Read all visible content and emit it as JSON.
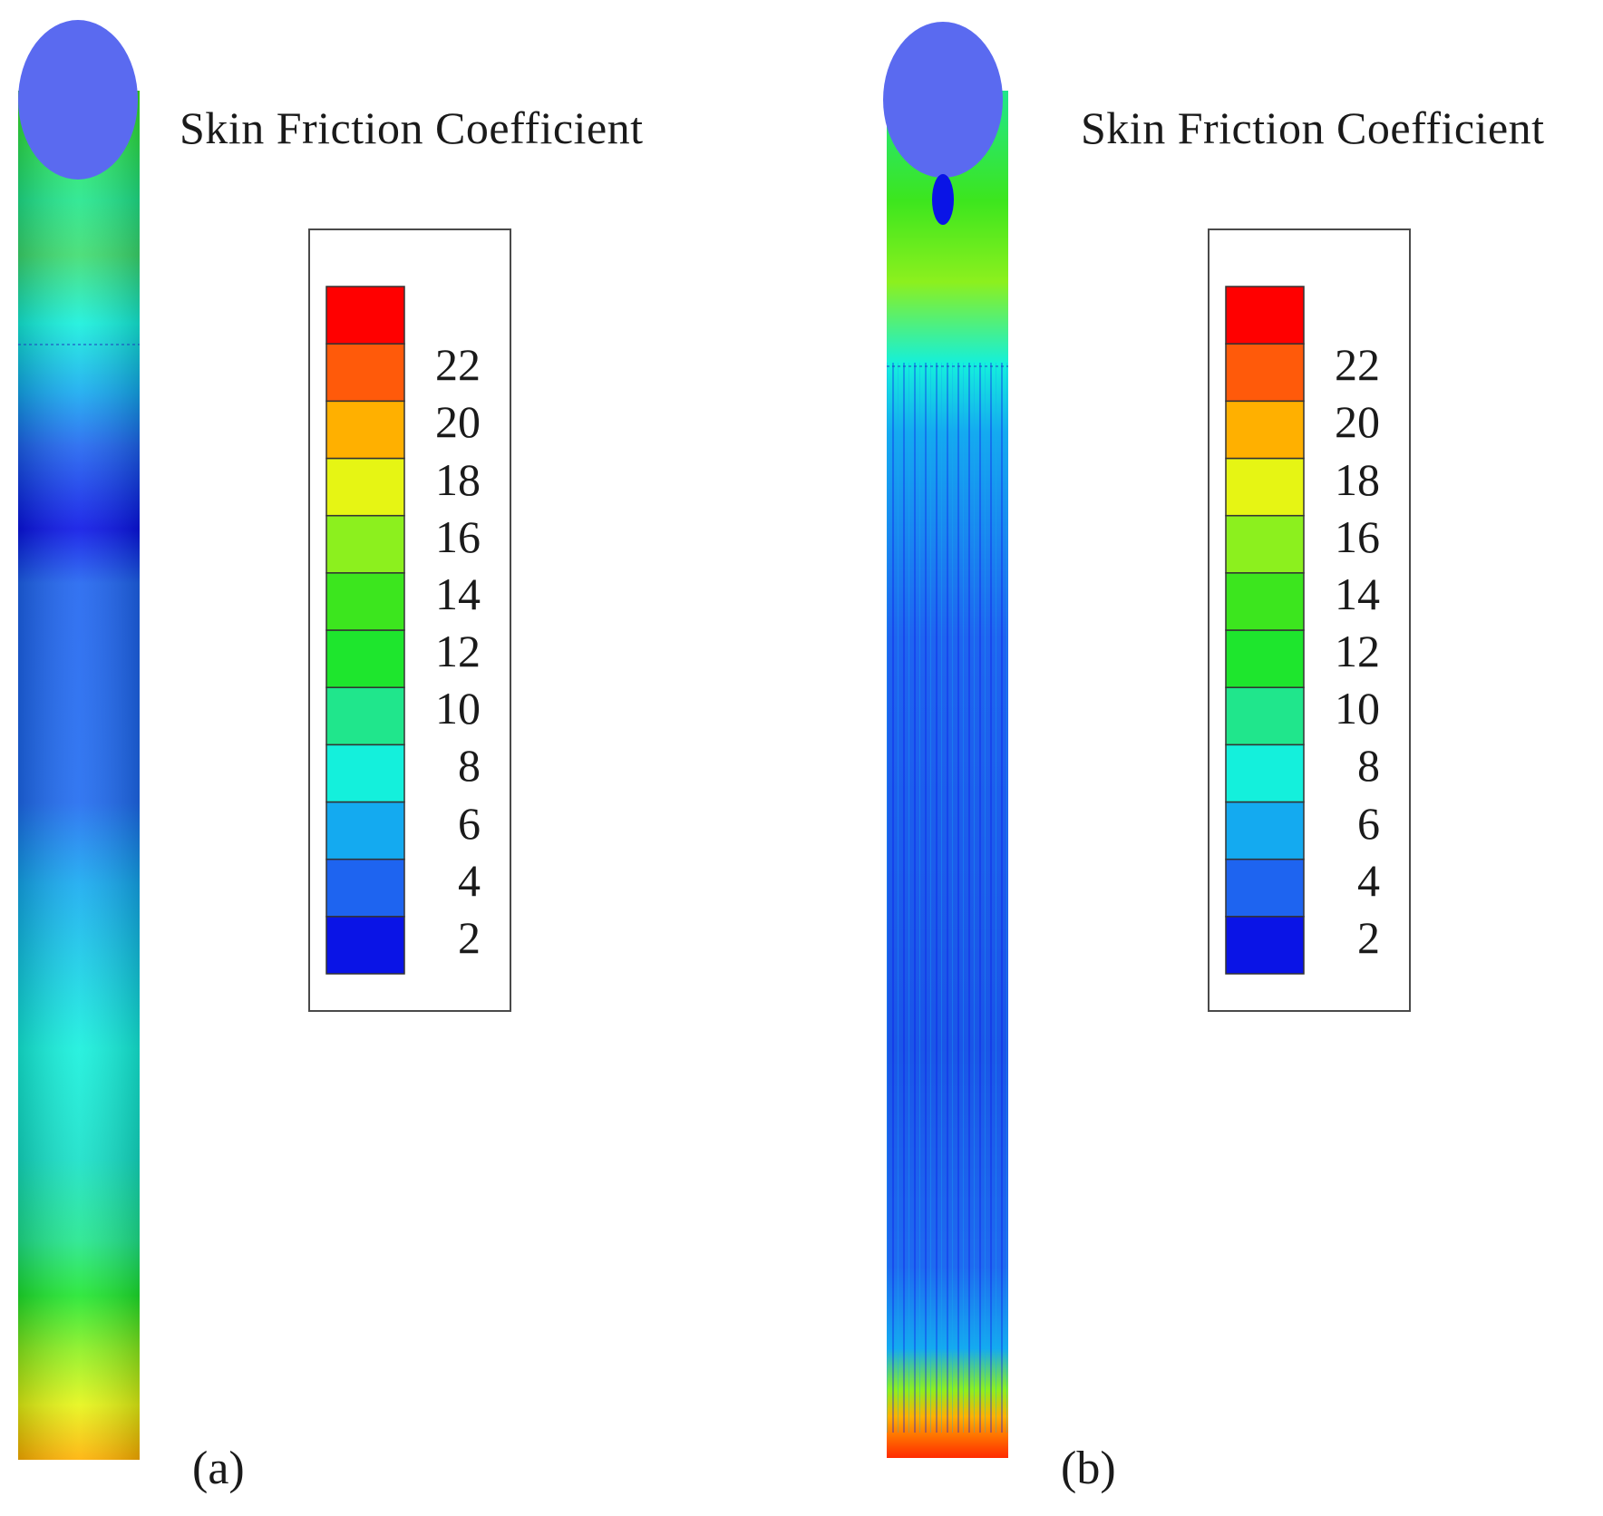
{
  "colorscale": {
    "colors": [
      "#0a14e6",
      "#1e64f0",
      "#14aaf0",
      "#14f0dc",
      "#20e68c",
      "#1ee62d",
      "#3ce61e",
      "#8cf01e",
      "#e6f514",
      "#ffb000",
      "#ff5a0a",
      "#ff0000"
    ],
    "tick_labels": [
      "2",
      "4",
      "6",
      "8",
      "10",
      "12",
      "14",
      "16",
      "18",
      "20",
      "22"
    ]
  },
  "panels": [
    {
      "id": "a",
      "title": "Skin Friction Coefficient",
      "label": "(a)"
    },
    {
      "id": "b",
      "title": "Skin Friction Coefficient",
      "label": "(b)"
    }
  ]
}
